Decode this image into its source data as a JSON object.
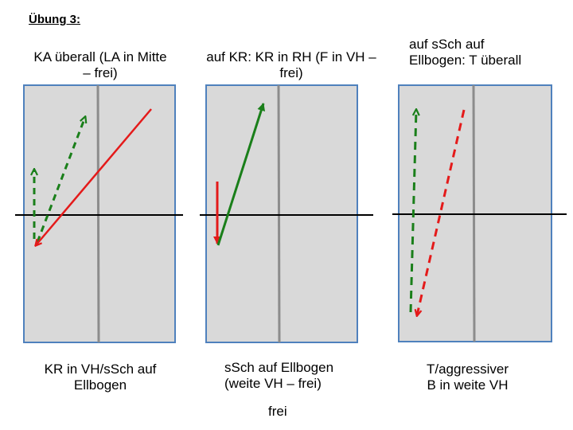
{
  "title": "Übung 3:",
  "panels": [
    {
      "top_caption_lines": [
        "KA überall (LA in Mitte",
        "– frei)"
      ],
      "bottom_caption_lines": [
        "KR in VH/sSch auf",
        "Ellbogen"
      ]
    },
    {
      "top_caption_lines": [
        "auf KR: KR in RH (F in VH –",
        "frei)"
      ],
      "bottom_caption_lines": [
        "sSch auf Ellbogen",
        "(weite VH – frei)"
      ]
    },
    {
      "top_caption_lines": [
        "auf sSch auf",
        "Ellbogen: T überall"
      ],
      "bottom_caption_lines": [
        "T/aggressiver",
        "B in weite VH"
      ]
    }
  ],
  "footer_text": "frei",
  "colors": {
    "field_fill": "#d9d9d9",
    "field_border": "#4f81bd",
    "divider": "#8c8c8c",
    "baseline": "#000000",
    "green": "#1a7f1a",
    "red": "#e41a1a"
  }
}
